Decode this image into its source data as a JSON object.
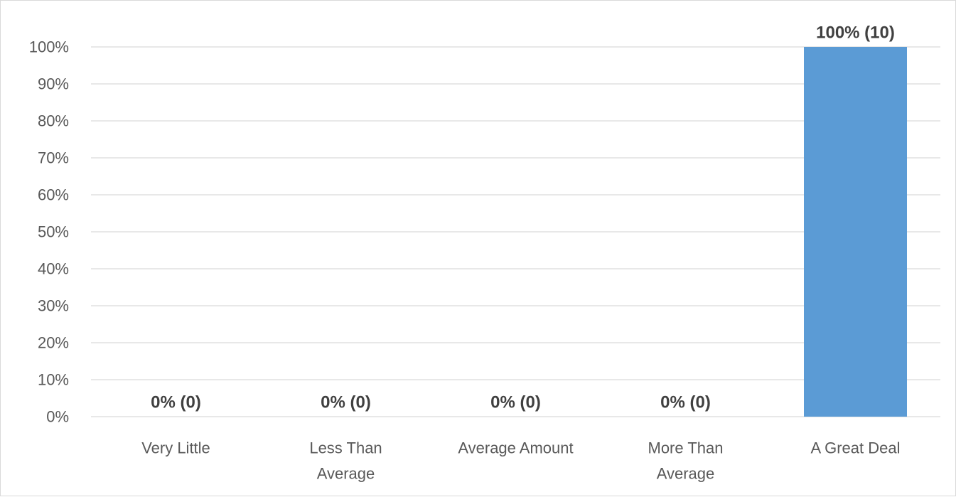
{
  "chart_data": {
    "type": "bar",
    "categories": [
      [
        "Very Little"
      ],
      [
        "Less Than",
        "Average"
      ],
      [
        "Average Amount"
      ],
      [
        "More Than",
        "Average"
      ],
      [
        "A Great Deal"
      ]
    ],
    "values": [
      0,
      0,
      0,
      0,
      100
    ],
    "data_labels": [
      "0% (0)",
      "0% (0)",
      "0% (0)",
      "0% (0)",
      "100% (10)"
    ],
    "ylim": [
      0,
      100
    ],
    "yticks": [
      0,
      10,
      20,
      30,
      40,
      50,
      60,
      70,
      80,
      90,
      100
    ],
    "ytick_format": "{v}%",
    "grid": true,
    "legend": false,
    "title": "",
    "xlabel": "",
    "ylabel": "",
    "colors": {
      "bar": "#5b9bd5",
      "grid": "#d9d9d9",
      "tick_text": "#595959",
      "data_label_text": "#404040"
    }
  }
}
